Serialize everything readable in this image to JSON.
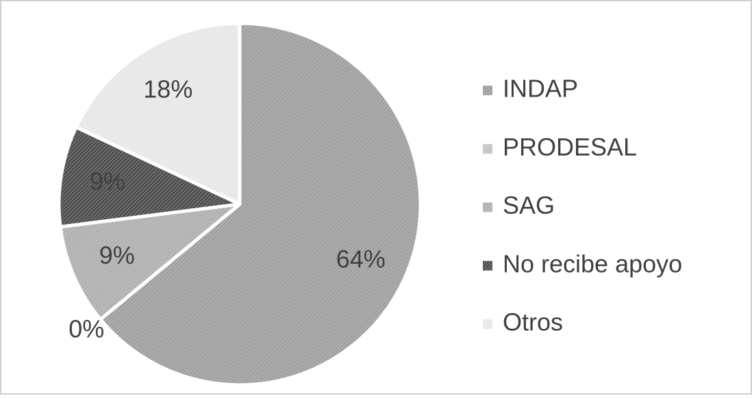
{
  "chart_data": {
    "type": "pie",
    "categories": [
      "INDAP",
      "PRODESAL",
      "SAG",
      "No recibe apoyo",
      "Otros"
    ],
    "values": [
      64,
      0,
      9,
      9,
      18
    ],
    "value_labels": [
      "64%",
      "0%",
      "9%",
      "9%",
      "18%"
    ],
    "colors": [
      "#a0a0a0",
      "#c4c4c4",
      "#b0b0b0",
      "#505050",
      "#e8e8e8"
    ],
    "legend": "right"
  }
}
